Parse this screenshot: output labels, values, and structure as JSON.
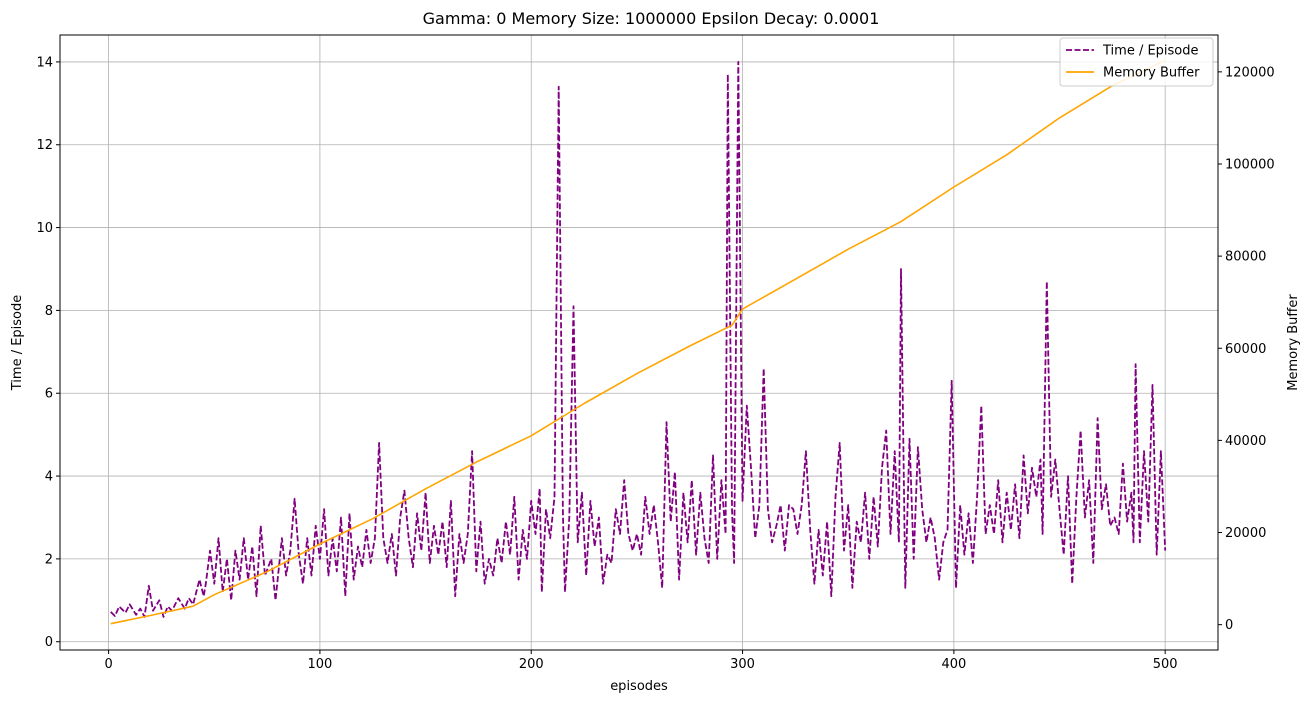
{
  "chart_data": {
    "type": "line",
    "title": "Gamma: 0    Memory Size: 1000000    Epsilon Decay: 0.0001",
    "xlabel": "episodes",
    "ylabel_left": "Time / Episode",
    "ylabel_right": "Memory Buffer",
    "xlim": [
      -23,
      525
    ],
    "ylim_left": [
      -0.2,
      14.65
    ],
    "ylim_right": [
      -5500,
      128000
    ],
    "x_ticks": [
      0,
      100,
      200,
      300,
      400,
      500
    ],
    "y_left_ticks": [
      0,
      2,
      4,
      6,
      8,
      10,
      12,
      14
    ],
    "y_right_ticks": [
      0,
      20000,
      40000,
      60000,
      80000,
      100000,
      120000
    ],
    "grid": true,
    "legend": "top-right",
    "series": [
      {
        "name": "Time / Episode",
        "axis": "left",
        "style": "dashed",
        "color": "#800080",
        "points": [
          [
            1,
            0.72
          ],
          [
            3,
            0.62
          ],
          [
            5,
            0.85
          ],
          [
            8,
            0.7
          ],
          [
            10,
            0.9
          ],
          [
            13,
            0.65
          ],
          [
            15,
            0.8
          ],
          [
            17,
            0.6
          ],
          [
            19,
            1.35
          ],
          [
            21,
            0.75
          ],
          [
            24,
            1.0
          ],
          [
            26,
            0.6
          ],
          [
            28,
            0.85
          ],
          [
            30,
            0.75
          ],
          [
            33,
            1.05
          ],
          [
            36,
            0.8
          ],
          [
            38,
            1.05
          ],
          [
            40,
            0.9
          ],
          [
            43,
            1.5
          ],
          [
            45,
            1.1
          ],
          [
            46,
            1.4
          ],
          [
            48,
            2.2
          ],
          [
            50,
            1.4
          ],
          [
            52,
            2.5
          ],
          [
            54,
            1.2
          ],
          [
            56,
            2.0
          ],
          [
            58,
            1.0
          ],
          [
            60,
            2.2
          ],
          [
            62,
            1.5
          ],
          [
            64,
            2.5
          ],
          [
            66,
            1.5
          ],
          [
            68,
            2.3
          ],
          [
            70,
            1.1
          ],
          [
            72,
            2.8
          ],
          [
            74,
            1.6
          ],
          [
            77,
            2.0
          ],
          [
            79,
            1.0
          ],
          [
            82,
            2.5
          ],
          [
            84,
            1.6
          ],
          [
            86,
            2.2
          ],
          [
            88,
            3.45
          ],
          [
            90,
            2.1
          ],
          [
            92,
            1.4
          ],
          [
            94,
            2.5
          ],
          [
            96,
            1.6
          ],
          [
            98,
            2.8
          ],
          [
            100,
            2.0
          ],
          [
            102,
            3.2
          ],
          [
            104,
            1.6
          ],
          [
            106,
            2.5
          ],
          [
            108,
            1.7
          ],
          [
            110,
            3.0
          ],
          [
            112,
            1.1
          ],
          [
            114,
            3.1
          ],
          [
            116,
            1.5
          ],
          [
            118,
            2.3
          ],
          [
            120,
            1.8
          ],
          [
            122,
            2.7
          ],
          [
            124,
            1.9
          ],
          [
            126,
            2.5
          ],
          [
            128,
            4.8
          ],
          [
            130,
            2.5
          ],
          [
            132,
            1.9
          ],
          [
            134,
            2.6
          ],
          [
            136,
            1.6
          ],
          [
            138,
            3.0
          ],
          [
            140,
            3.65
          ],
          [
            142,
            2.5
          ],
          [
            144,
            1.8
          ],
          [
            146,
            3.1
          ],
          [
            148,
            2.2
          ],
          [
            150,
            3.6
          ],
          [
            152,
            1.9
          ],
          [
            154,
            2.8
          ],
          [
            156,
            2.1
          ],
          [
            158,
            2.9
          ],
          [
            160,
            1.8
          ],
          [
            162,
            3.4
          ],
          [
            164,
            1.1
          ],
          [
            166,
            2.6
          ],
          [
            168,
            1.9
          ],
          [
            170,
            2.6
          ],
          [
            172,
            4.6
          ],
          [
            174,
            1.7
          ],
          [
            176,
            2.9
          ],
          [
            178,
            1.4
          ],
          [
            180,
            2.0
          ],
          [
            182,
            1.6
          ],
          [
            184,
            2.5
          ],
          [
            186,
            1.9
          ],
          [
            188,
            2.9
          ],
          [
            190,
            2.1
          ],
          [
            192,
            3.5
          ],
          [
            194,
            1.5
          ],
          [
            196,
            2.7
          ],
          [
            198,
            2.0
          ],
          [
            200,
            3.4
          ],
          [
            202,
            2.6
          ],
          [
            204,
            3.7
          ],
          [
            205,
            1.2
          ],
          [
            207,
            3.2
          ],
          [
            209,
            2.5
          ],
          [
            211,
            3.5
          ],
          [
            213,
            13.4
          ],
          [
            215,
            3.1
          ],
          [
            216,
            1.2
          ],
          [
            218,
            3.0
          ],
          [
            220,
            8.1
          ],
          [
            222,
            2.4
          ],
          [
            224,
            3.6
          ],
          [
            226,
            1.6
          ],
          [
            228,
            3.4
          ],
          [
            230,
            2.3
          ],
          [
            232,
            3.0
          ],
          [
            234,
            1.4
          ],
          [
            236,
            2.1
          ],
          [
            238,
            1.9
          ],
          [
            240,
            3.2
          ],
          [
            242,
            2.6
          ],
          [
            244,
            3.9
          ],
          [
            246,
            2.6
          ],
          [
            248,
            2.2
          ],
          [
            250,
            2.6
          ],
          [
            252,
            2.1
          ],
          [
            254,
            3.5
          ],
          [
            256,
            2.6
          ],
          [
            258,
            3.3
          ],
          [
            260,
            2.4
          ],
          [
            262,
            1.3
          ],
          [
            264,
            5.3
          ],
          [
            266,
            2.9
          ],
          [
            268,
            4.1
          ],
          [
            270,
            1.5
          ],
          [
            272,
            3.6
          ],
          [
            274,
            2.4
          ],
          [
            276,
            3.9
          ],
          [
            278,
            2.1
          ],
          [
            280,
            3.6
          ],
          [
            282,
            2.5
          ],
          [
            284,
            1.9
          ],
          [
            286,
            4.5
          ],
          [
            288,
            2.0
          ],
          [
            290,
            3.9
          ],
          [
            292,
            2.6
          ],
          [
            293,
            13.7
          ],
          [
            295,
            3.2
          ],
          [
            296,
            1.9
          ],
          [
            298,
            14.0
          ],
          [
            300,
            3.4
          ],
          [
            302,
            5.7
          ],
          [
            304,
            4.2
          ],
          [
            306,
            2.5
          ],
          [
            308,
            3.3
          ],
          [
            310,
            6.6
          ],
          [
            312,
            3.2
          ],
          [
            314,
            2.4
          ],
          [
            316,
            2.8
          ],
          [
            318,
            3.3
          ],
          [
            320,
            2.2
          ],
          [
            322,
            3.3
          ],
          [
            324,
            3.2
          ],
          [
            326,
            2.6
          ],
          [
            328,
            3.3
          ],
          [
            330,
            4.6
          ],
          [
            332,
            2.7
          ],
          [
            334,
            1.4
          ],
          [
            336,
            2.7
          ],
          [
            338,
            1.6
          ],
          [
            340,
            2.9
          ],
          [
            342,
            1.1
          ],
          [
            344,
            3.5
          ],
          [
            346,
            4.8
          ],
          [
            348,
            2.2
          ],
          [
            350,
            3.3
          ],
          [
            352,
            1.3
          ],
          [
            354,
            2.9
          ],
          [
            356,
            2.4
          ],
          [
            358,
            3.6
          ],
          [
            360,
            2.0
          ],
          [
            362,
            3.5
          ],
          [
            364,
            2.3
          ],
          [
            366,
            4.2
          ],
          [
            368,
            5.1
          ],
          [
            370,
            2.6
          ],
          [
            372,
            4.6
          ],
          [
            374,
            2.4
          ],
          [
            375,
            9.0
          ],
          [
            377,
            1.3
          ],
          [
            379,
            4.9
          ],
          [
            381,
            2.0
          ],
          [
            383,
            4.7
          ],
          [
            385,
            3.2
          ],
          [
            387,
            2.4
          ],
          [
            389,
            3.0
          ],
          [
            391,
            2.5
          ],
          [
            393,
            1.5
          ],
          [
            395,
            2.4
          ],
          [
            397,
            2.7
          ],
          [
            399,
            6.3
          ],
          [
            401,
            1.3
          ],
          [
            403,
            3.3
          ],
          [
            405,
            2.1
          ],
          [
            407,
            3.1
          ],
          [
            409,
            1.9
          ],
          [
            411,
            3.5
          ],
          [
            413,
            5.7
          ],
          [
            415,
            2.6
          ],
          [
            417,
            3.3
          ],
          [
            419,
            2.6
          ],
          [
            421,
            3.9
          ],
          [
            423,
            2.4
          ],
          [
            425,
            3.6
          ],
          [
            427,
            2.7
          ],
          [
            429,
            3.8
          ],
          [
            431,
            2.5
          ],
          [
            433,
            4.5
          ],
          [
            435,
            3.1
          ],
          [
            437,
            4.2
          ],
          [
            439,
            3.5
          ],
          [
            441,
            4.4
          ],
          [
            442,
            2.6
          ],
          [
            444,
            8.7
          ],
          [
            446,
            3.5
          ],
          [
            448,
            4.4
          ],
          [
            450,
            3.2
          ],
          [
            452,
            2.1
          ],
          [
            454,
            4.0
          ],
          [
            456,
            1.4
          ],
          [
            458,
            3.5
          ],
          [
            460,
            5.1
          ],
          [
            462,
            3.0
          ],
          [
            464,
            3.9
          ],
          [
            466,
            1.9
          ],
          [
            468,
            5.4
          ],
          [
            470,
            3.2
          ],
          [
            472,
            3.8
          ],
          [
            474,
            2.8
          ],
          [
            476,
            3.0
          ],
          [
            478,
            2.6
          ],
          [
            480,
            4.3
          ],
          [
            482,
            2.9
          ],
          [
            484,
            3.6
          ],
          [
            485,
            2.4
          ],
          [
            486,
            6.7
          ],
          [
            488,
            2.4
          ],
          [
            490,
            4.6
          ],
          [
            492,
            2.9
          ],
          [
            494,
            6.2
          ],
          [
            496,
            2.1
          ],
          [
            498,
            4.6
          ],
          [
            500,
            2.2
          ]
        ]
      },
      {
        "name": "Memory Buffer",
        "axis": "right",
        "style": "solid",
        "color": "#ffa500",
        "points": [
          [
            1,
            200
          ],
          [
            20,
            2000
          ],
          [
            40,
            4000
          ],
          [
            50,
            6500
          ],
          [
            75,
            11500
          ],
          [
            100,
            17500
          ],
          [
            125,
            23000
          ],
          [
            150,
            29500
          ],
          [
            175,
            35500
          ],
          [
            200,
            41000
          ],
          [
            225,
            48000
          ],
          [
            250,
            54500
          ],
          [
            275,
            60500
          ],
          [
            295,
            65000
          ],
          [
            300,
            68500
          ],
          [
            325,
            75000
          ],
          [
            350,
            81500
          ],
          [
            375,
            87500
          ],
          [
            400,
            95000
          ],
          [
            425,
            102000
          ],
          [
            450,
            110000
          ],
          [
            475,
            117000
          ],
          [
            500,
            122500
          ]
        ]
      }
    ]
  }
}
